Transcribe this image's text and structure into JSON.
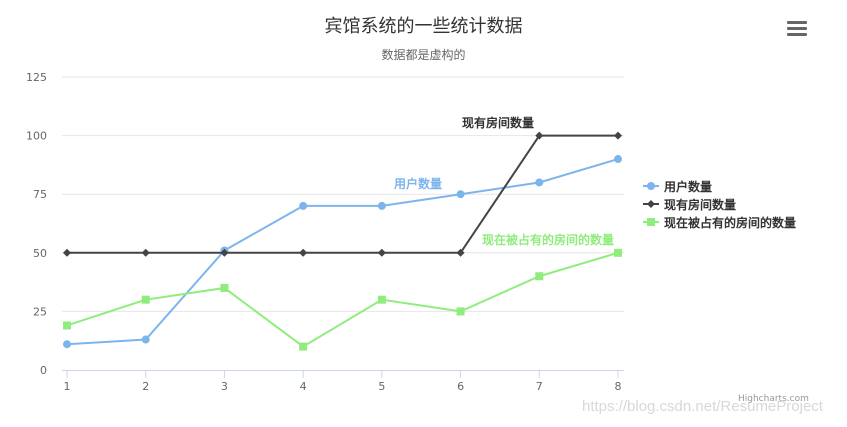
{
  "header": {
    "title": "宾馆系统的一些统计数据",
    "subtitle": "数据都是虚构的",
    "menu_icon": "hamburger-menu-icon"
  },
  "credits": "Highcharts.com",
  "watermark": "https://blog.csdn.net/ResumeProject",
  "legend": {
    "items": [
      {
        "label": "用户数量",
        "color": "#7cb5ec",
        "marker": "circle"
      },
      {
        "label": "现有房间数量",
        "color": "#434348",
        "marker": "diamond"
      },
      {
        "label": "现在被占有的房间的数量",
        "color": "#90ed7d",
        "marker": "square"
      }
    ]
  },
  "series_labels": {
    "users": "用户数量",
    "rooms": "现有房间数量",
    "occupied": "现在被占有的房间的数量"
  },
  "chart_data": {
    "type": "line",
    "title": "宾馆系统的一些统计数据",
    "subtitle": "数据都是虚构的",
    "xlabel": "",
    "ylabel": "",
    "x": [
      1,
      2,
      3,
      4,
      5,
      6,
      7,
      8
    ],
    "yticks": [
      0,
      25,
      50,
      75,
      100,
      125
    ],
    "ylim": [
      0,
      125
    ],
    "grid": true,
    "legend_position": "right",
    "series": [
      {
        "name": "用户数量",
        "color": "#7cb5ec",
        "marker": "circle",
        "values": [
          11,
          13,
          51,
          70,
          70,
          75,
          80,
          90
        ]
      },
      {
        "name": "现有房间数量",
        "color": "#434348",
        "marker": "diamond",
        "values": [
          50,
          50,
          50,
          50,
          50,
          50,
          100,
          100
        ]
      },
      {
        "name": "现在被占有的房间的数量",
        "color": "#90ed7d",
        "marker": "square",
        "values": [
          19,
          30,
          35,
          10,
          30,
          25,
          40,
          50
        ]
      }
    ]
  }
}
